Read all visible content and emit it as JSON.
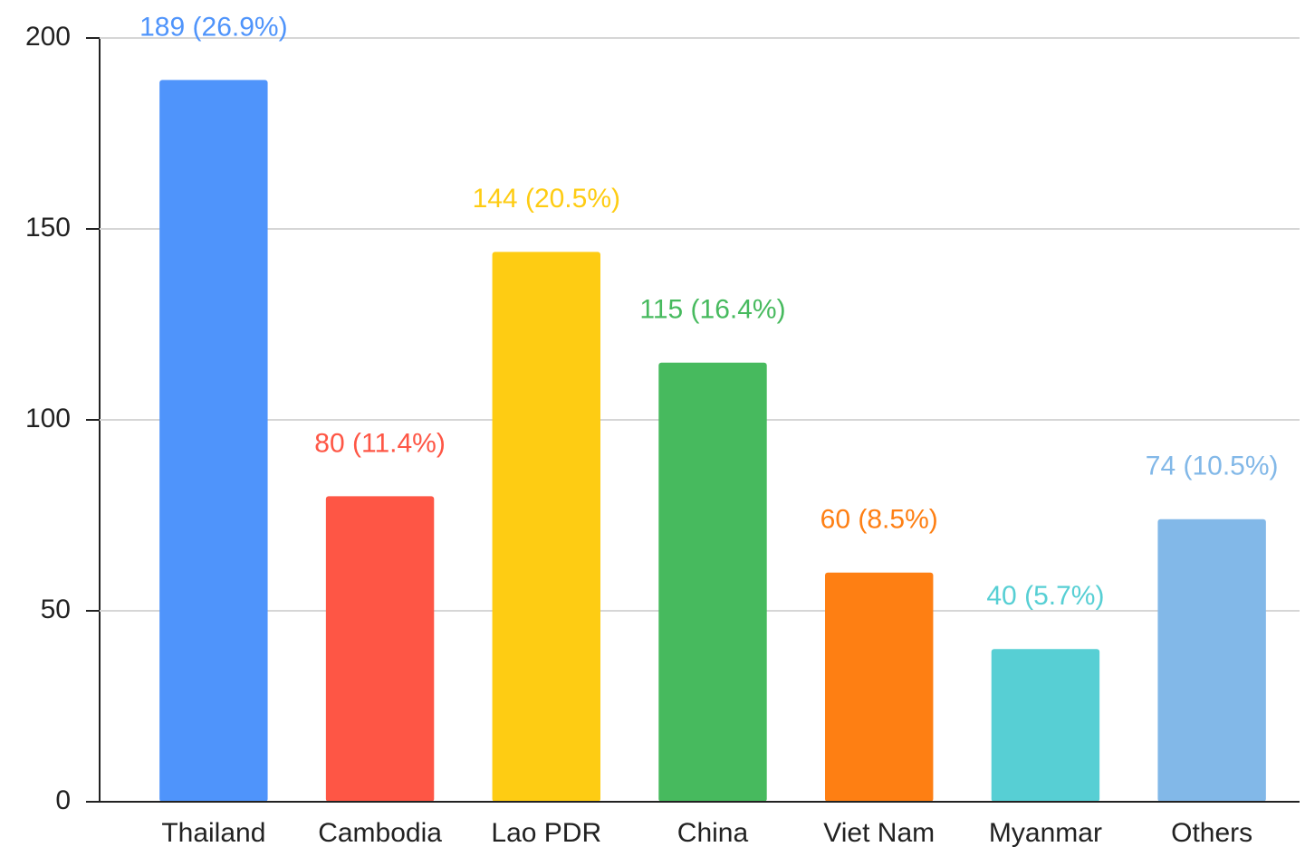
{
  "chart_data": {
    "type": "bar",
    "categories": [
      "Thailand",
      "Cambodia",
      "Lao PDR",
      "China",
      "Viet Nam",
      "Myanmar",
      "Others"
    ],
    "values": [
      189,
      80,
      144,
      115,
      60,
      40,
      74
    ],
    "value_labels": [
      "189 (26.9%)",
      "80 (11.4%)",
      "144 (20.5%)",
      "115 (16.4%)",
      "60 (8.5%)",
      "40 (5.7%)",
      "74 (10.5%)"
    ],
    "colors": [
      "#4f94fb",
      "#fe5645",
      "#fecc13",
      "#47ba5e",
      "#fe7f13",
      "#57cfd4",
      "#82b8e8"
    ],
    "ylim": [
      0,
      200
    ],
    "yticks": [
      0,
      50,
      100,
      150,
      200
    ],
    "grid": true
  }
}
